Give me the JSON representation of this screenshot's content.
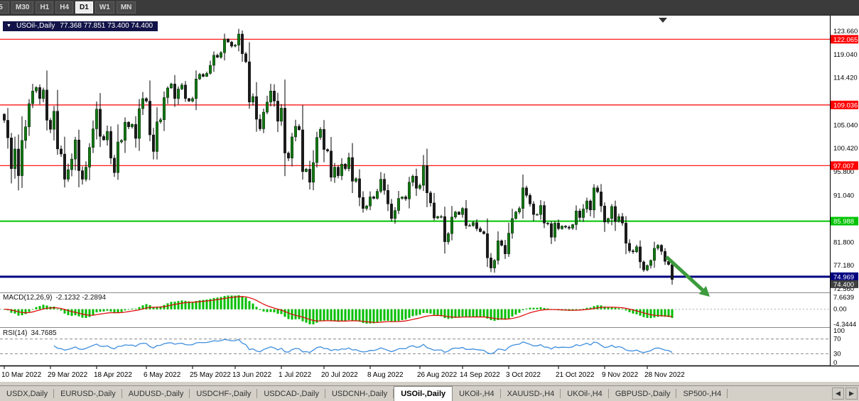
{
  "toolbar": {
    "timeframes": [
      {
        "label": "5",
        "active": false
      },
      {
        "label": "M30",
        "active": false
      },
      {
        "label": "H1",
        "active": false
      },
      {
        "label": "H4",
        "active": false
      },
      {
        "label": "D1",
        "active": true
      },
      {
        "label": "W1",
        "active": false
      },
      {
        "label": "MN",
        "active": false
      }
    ]
  },
  "chart": {
    "title": {
      "symbol": "USOil-,Daily",
      "ohlc": "77.368 77.851 73.400 74.400"
    }
  },
  "macd": {
    "label": "MACD(12,26,9)",
    "values_text": "-2.1232 -2.2894",
    "scale_top": "7.6639",
    "scale_zero": "0.00",
    "scale_bottom": "-4.3444",
    "histogram_color": "#00BE00",
    "signal_color": "#E00000"
  },
  "rsi": {
    "label": "RSI(14)",
    "value_text": "34.7685",
    "scale_top": "100",
    "scale_70": "70",
    "scale_30": "30",
    "scale_bottom": "0",
    "guides": [
      70,
      30
    ],
    "line_color": "#3E8EDE"
  },
  "tabs": {
    "active_index": 6,
    "nav_left": "◀",
    "nav_right": "▶",
    "items": [
      {
        "label": "USDX,Daily"
      },
      {
        "label": "EURUSD-,Daily"
      },
      {
        "label": "AUDUSD-,Daily"
      },
      {
        "label": "USDCHF-,Daily"
      },
      {
        "label": "USDCAD-,Daily"
      },
      {
        "label": "USDCNH-,Daily"
      },
      {
        "label": "USOil-,Daily"
      },
      {
        "label": "UKOil-,H4"
      },
      {
        "label": "XAUUSD-,H4"
      },
      {
        "label": "UKOil-,H4"
      },
      {
        "label": "GBPUSD-,Daily"
      },
      {
        "label": "SP500-,H4"
      }
    ]
  },
  "chart_data": {
    "type": "candlestick",
    "symbol": "USOil",
    "timeframe": "Daily",
    "ylim": [
      72.56,
      123.66
    ],
    "price_axis_ticks": [
      123.66,
      119.04,
      114.42,
      105.04,
      100.42,
      95.8,
      91.04,
      81.8,
      77.18,
      72.56
    ],
    "levels": [
      {
        "value": 122.065,
        "label": "122.065",
        "color": "#FF0000",
        "width": 1.2,
        "kind": "resistance"
      },
      {
        "value": 109.036,
        "label": "109.036",
        "color": "#FF0000",
        "width": 1.2,
        "kind": "resistance"
      },
      {
        "value": 97.007,
        "label": "97.007",
        "color": "#FF0000",
        "width": 1.2,
        "kind": "resistance"
      },
      {
        "value": 85.988,
        "label": "85.988",
        "color": "#00C400",
        "width": 2,
        "kind": "support"
      },
      {
        "value": 74.969,
        "label": "74.969",
        "color": "#000080",
        "width": 3,
        "kind": "support"
      }
    ],
    "current_price": {
      "value": 74.4,
      "label": "74.400"
    },
    "dates": [
      {
        "label": "10 Mar 2022",
        "index": 0
      },
      {
        "label": "29 Mar 2022",
        "index": 13
      },
      {
        "label": "18 Apr 2022",
        "index": 26
      },
      {
        "label": "6 May 2022",
        "index": 40
      },
      {
        "label": "25 May 2022",
        "index": 53
      },
      {
        "label": "13 Jun 2022",
        "index": 65
      },
      {
        "label": "1 Jul 2022",
        "index": 78
      },
      {
        "label": "20 Jul 2022",
        "index": 90
      },
      {
        "label": "8 Aug 2022",
        "index": 103
      },
      {
        "label": "26 Aug 2022",
        "index": 117
      },
      {
        "label": "14 Sep 2022",
        "index": 129
      },
      {
        "label": "3 Oct 2022",
        "index": 142
      },
      {
        "label": "21 Oct 2022",
        "index": 156
      },
      {
        "label": "9 Nov 2022",
        "index": 169
      },
      {
        "label": "28 Nov 2022",
        "index": 181
      }
    ],
    "candles": {
      "bull_color": "#117A11",
      "bear_color": "#1a1a1a",
      "last_ohlc": [
        77.368,
        77.851,
        73.4,
        74.4
      ],
      "closes": [
        106.0,
        102.5,
        96.4,
        100.3,
        95.0,
        102.0,
        104.7,
        109.3,
        111.8,
        112.5,
        110.3,
        112.0,
        106.0,
        104.2,
        107.8,
        100.3,
        99.3,
        94.3,
        96.2,
        98.3,
        102.1,
        96.0,
        94.3,
        96.7,
        100.6,
        104.3,
        108.2,
        102.8,
        102.1,
        103.8,
        98.5,
        95.6,
        101.7,
        102.0,
        105.6,
        104.7,
        105.2,
        102.4,
        108.3,
        110.3,
        109.8,
        103.1,
        99.8,
        105.7,
        106.1,
        110.5,
        112.4,
        113.2,
        110.3,
        112.2,
        113.0,
        110.3,
        109.8,
        110.3,
        114.2,
        115.1,
        114.7,
        115.3,
        116.9,
        118.9,
        118.5,
        119.4,
        122.1,
        121.5,
        120.7,
        120.9,
        123.1,
        119.2,
        117.6,
        109.6,
        110.7,
        106.2,
        104.3,
        107.6,
        109.6,
        111.8,
        109.8,
        105.8,
        108.4,
        99.5,
        98.5,
        102.7,
        104.8,
        104.1,
        95.8,
        96.3,
        93.7,
        97.6,
        102.6,
        104.2,
        100.2,
        99.9,
        94.7,
        96.7,
        95.0,
        97.3,
        96.4,
        98.6,
        93.9,
        94.4,
        90.7,
        88.5,
        89.0,
        90.8,
        90.5,
        91.9,
        94.3,
        92.1,
        89.4,
        86.5,
        88.1,
        90.5,
        90.8,
        90.4,
        93.7,
        94.9,
        92.5,
        93.1,
        97.0,
        91.6,
        89.6,
        86.6,
        86.9,
        86.9,
        81.9,
        83.5,
        86.8,
        87.8,
        87.3,
        88.5,
        85.1,
        85.1,
        85.7,
        84.5,
        83.9,
        83.5,
        78.7,
        76.7,
        78.2,
        82.1,
        81.2,
        79.5,
        83.6,
        86.5,
        87.8,
        88.5,
        92.6,
        91.1,
        89.4,
        87.3,
        87.3,
        89.1,
        85.6,
        85.5,
        82.8,
        85.6,
        84.5,
        85.0,
        84.8,
        84.6,
        85.3,
        88.0,
        86.7,
        88.4,
        90.0,
        88.2,
        92.6,
        91.8,
        89.0,
        85.8,
        86.5,
        88.9,
        85.9,
        86.9,
        85.6,
        81.6,
        80.1,
        79.9,
        80.9,
        77.9,
        76.3,
        77.2,
        78.2,
        80.6,
        81.2,
        80.0,
        78.0,
        77.4,
        74.4
      ]
    },
    "annotation_arrow": {
      "color": "#3C9B3C",
      "direction": "down-right"
    }
  }
}
